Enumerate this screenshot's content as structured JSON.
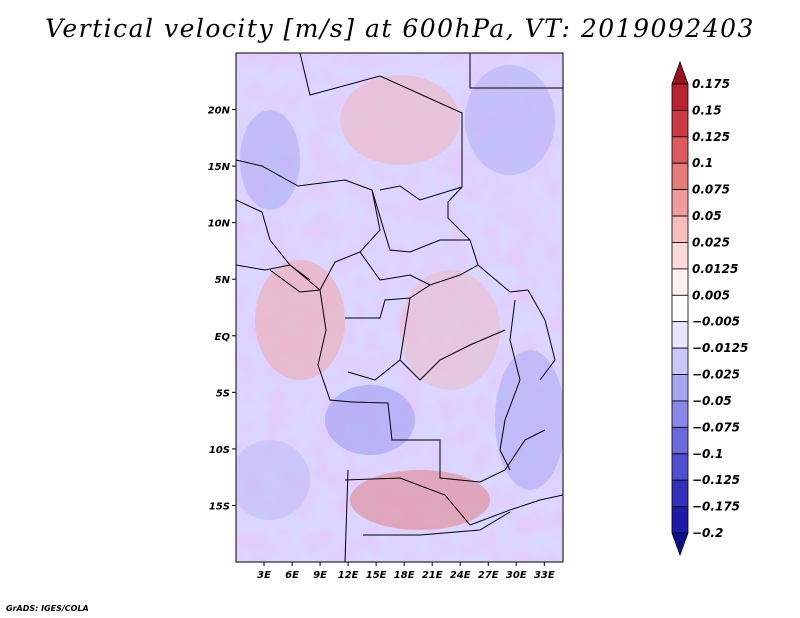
{
  "title": "Vertical velocity [m/s] at 600hPa, VT: 2019092403",
  "credit": "GrADS: IGES/COLA",
  "map": {
    "lon_range": [
      0,
      35
    ],
    "lat_range": [
      -20,
      25
    ],
    "lat_ticks": [
      "20N",
      "15N",
      "10N",
      "5N",
      "EQ",
      "5S",
      "10S",
      "15S"
    ],
    "lat_tick_values": [
      20,
      15,
      10,
      5,
      0,
      -5,
      -10,
      -15
    ],
    "lon_ticks": [
      "3E",
      "6E",
      "9E",
      "12E",
      "15E",
      "18E",
      "21E",
      "24E",
      "27E",
      "30E",
      "33E"
    ],
    "lon_tick_values": [
      3,
      6,
      9,
      12,
      15,
      18,
      21,
      24,
      27,
      30,
      33
    ]
  },
  "colorbar": {
    "labels": [
      "0.175",
      "0.15",
      "0.125",
      "0.1",
      "0.075",
      "0.05",
      "0.025",
      "0.0125",
      "0.005",
      "−0.005",
      "−0.0125",
      "−0.025",
      "−0.05",
      "−0.075",
      "−0.1",
      "−0.125",
      "−0.175",
      "−0.2"
    ],
    "colors": [
      "#a01020",
      "#b8222e",
      "#cc3a42",
      "#dc5a5e",
      "#e67c7c",
      "#f09c9c",
      "#f7bcbc",
      "#fcdada",
      "#fff0f0",
      "#ffffff",
      "#e6e6ff",
      "#c8c8fa",
      "#a8a8f2",
      "#8888e8",
      "#6a6adc",
      "#4e4ed0",
      "#3232bc",
      "#1c1ca8",
      "#10108c"
    ]
  }
}
